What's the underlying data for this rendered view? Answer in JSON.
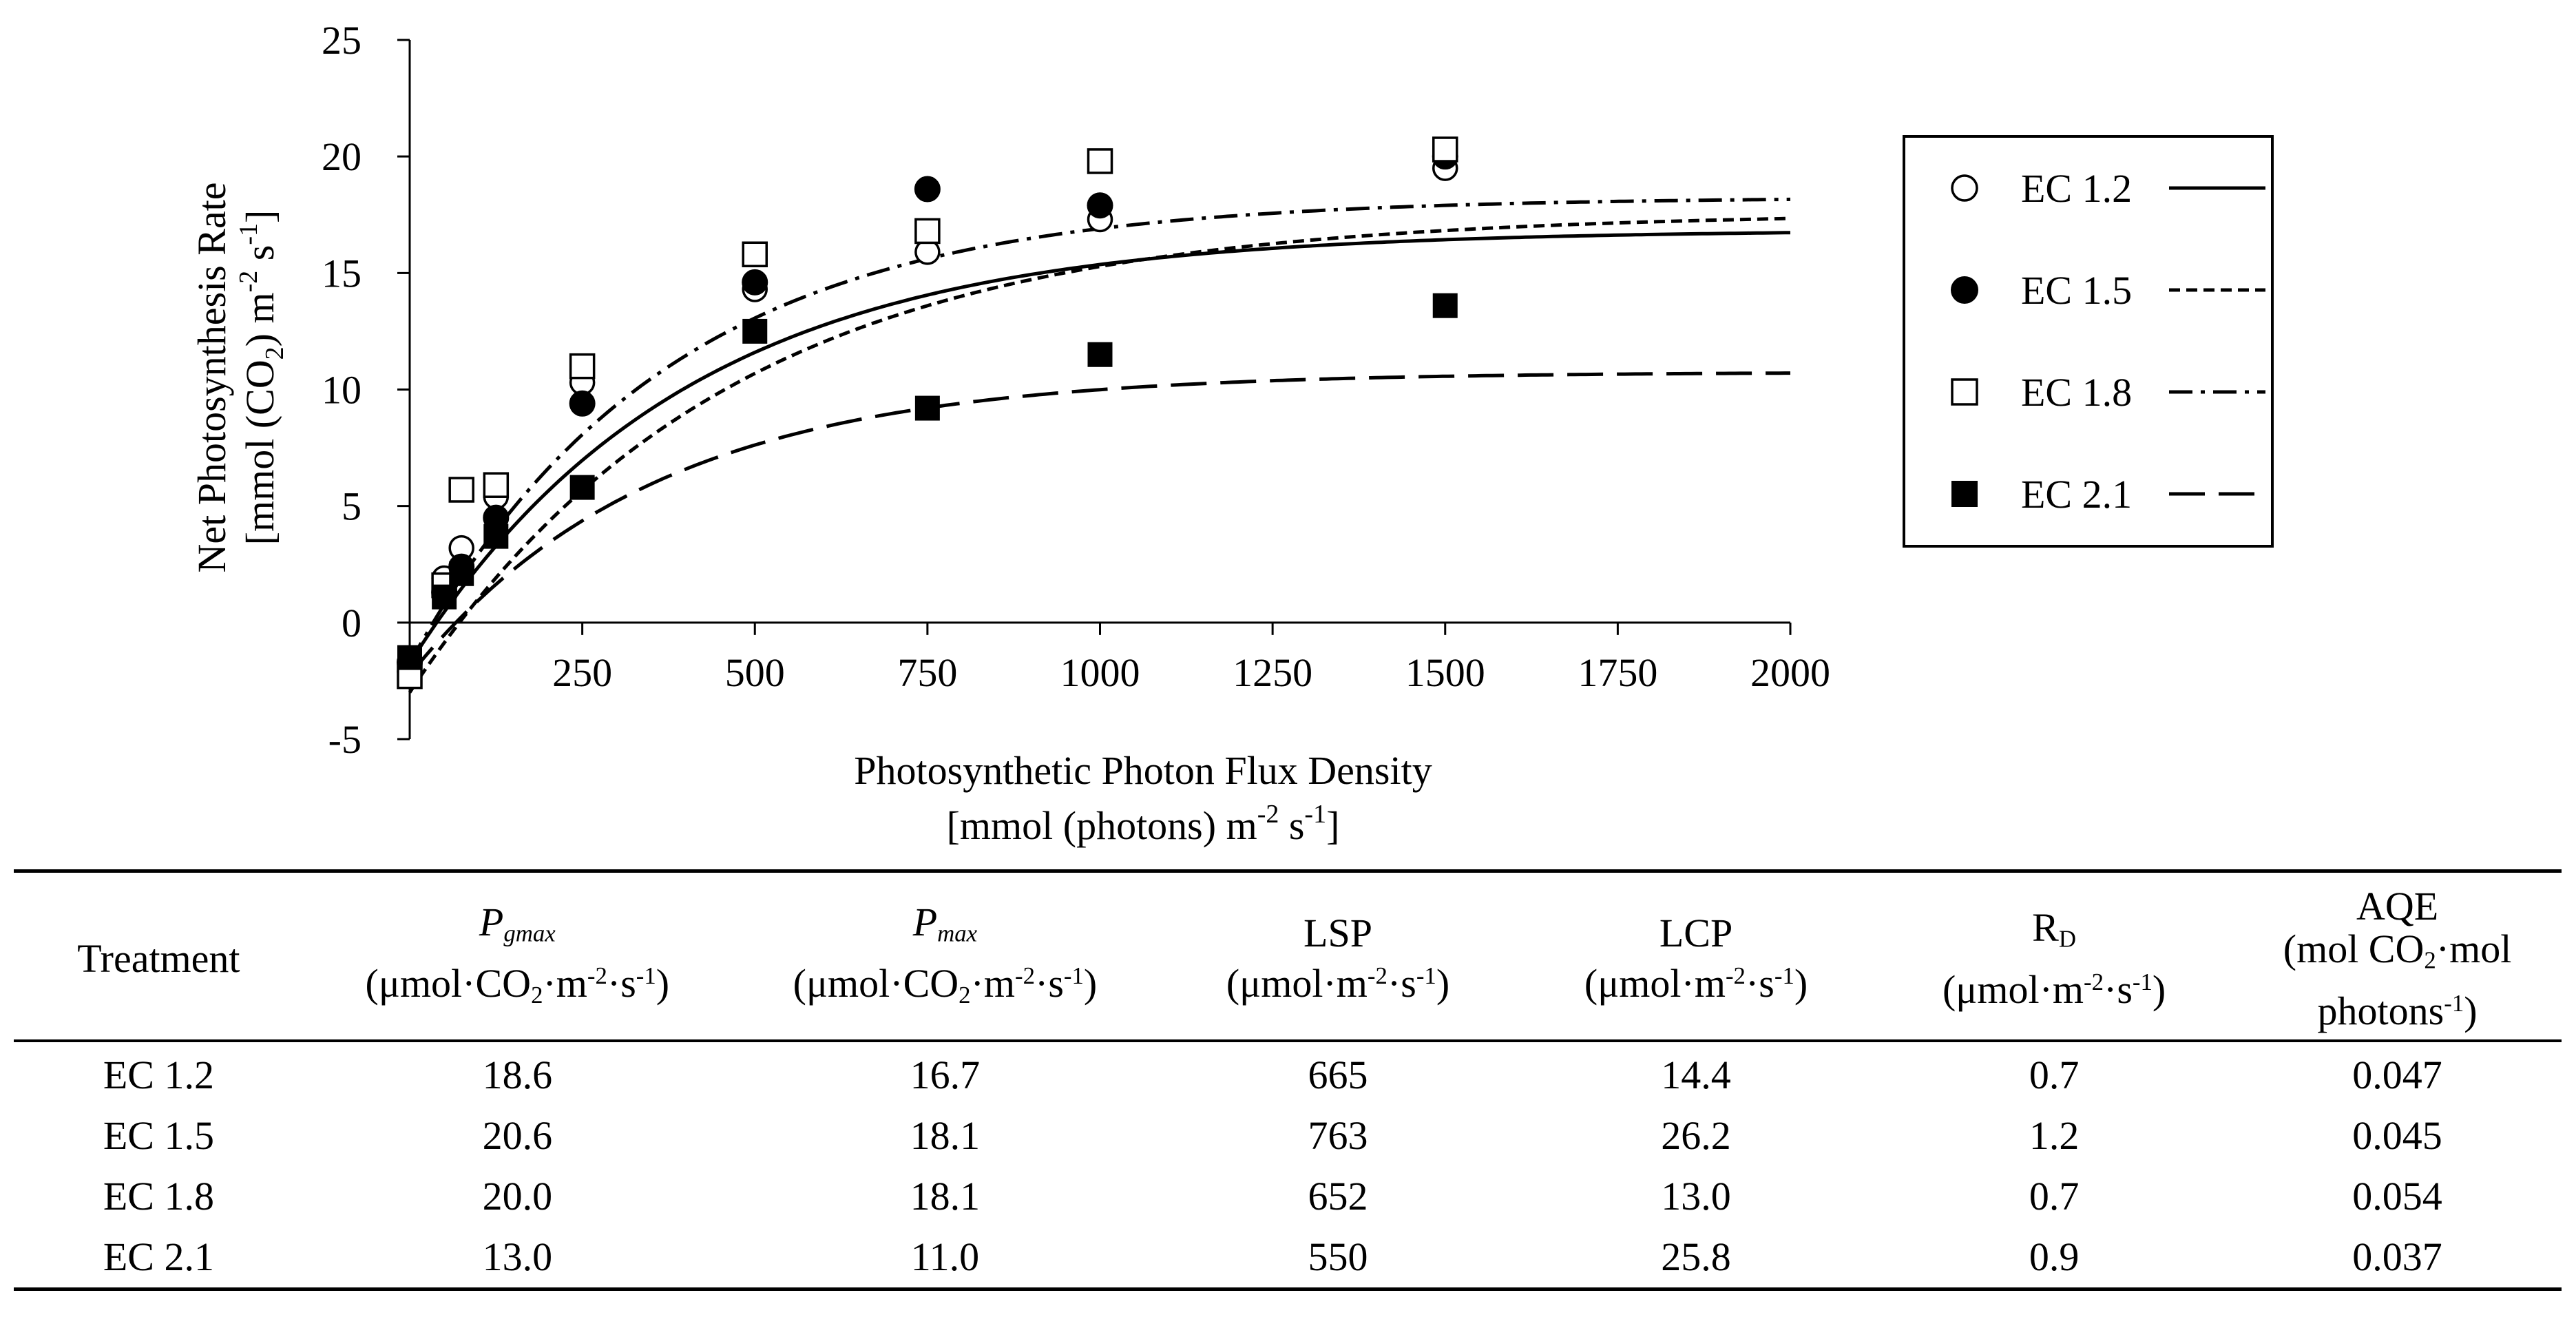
{
  "chart_data": {
    "type": "scatter",
    "title": "",
    "xlabel": "Photosynthetic Photon Flux Density",
    "xlabel_units": "[mmol (photons) m-2 s-1]",
    "ylabel": "Net Photosynthesis Rate",
    "ylabel_units": "[mmol (CO2) m-2 s-1]",
    "xlim": [
      0,
      2000
    ],
    "ylim": [
      -5,
      25
    ],
    "x_ticks": [
      250,
      500,
      750,
      1000,
      1250,
      1500,
      1750,
      2000
    ],
    "x_tick_labels": [
      "250",
      "500",
      "750",
      "1000",
      "1250",
      "1500",
      "1750",
      "2000"
    ],
    "y_ticks": [
      -5,
      0,
      5,
      10,
      15,
      20,
      25
    ],
    "y_tick_labels": [
      "-5",
      "0",
      "5",
      "10",
      "15",
      "20",
      "25"
    ],
    "grid": false,
    "legend_position": "right",
    "series": [
      {
        "name": "EC 1.2",
        "marker": "open-circle",
        "line": "solid",
        "points": [
          [
            0,
            -2.1
          ],
          [
            50,
            1.9
          ],
          [
            75,
            3.2
          ],
          [
            125,
            5.4
          ],
          [
            250,
            10.3
          ],
          [
            500,
            14.3
          ],
          [
            750,
            15.9
          ],
          [
            1000,
            17.3
          ],
          [
            1500,
            19.5
          ]
        ],
        "fit": {
          "pgmax": 18.6,
          "rd": 0.7,
          "aqe": 0.047
        }
      },
      {
        "name": "EC 1.5",
        "marker": "filled-circle",
        "line": "short-dash",
        "points": [
          [
            0,
            -1.7
          ],
          [
            50,
            1.3
          ],
          [
            75,
            2.4
          ],
          [
            125,
            4.5
          ],
          [
            250,
            9.4
          ],
          [
            500,
            14.6
          ],
          [
            750,
            18.6
          ],
          [
            1000,
            17.9
          ],
          [
            1500,
            20.0
          ]
        ],
        "fit": {
          "pgmax": 20.6,
          "rd": 1.2,
          "aqe": 0.045
        }
      },
      {
        "name": "EC 1.8",
        "marker": "open-square",
        "line": "dash-dot",
        "points": [
          [
            0,
            -2.3
          ],
          [
            50,
            1.6
          ],
          [
            75,
            5.7
          ],
          [
            125,
            5.9
          ],
          [
            250,
            11.0
          ],
          [
            500,
            15.8
          ],
          [
            750,
            16.8
          ],
          [
            1000,
            19.8
          ],
          [
            1500,
            20.3
          ]
        ],
        "fit": {
          "pgmax": 20.0,
          "rd": 0.7,
          "aqe": 0.054
        }
      },
      {
        "name": "EC 2.1",
        "marker": "filled-square",
        "line": "long-dash",
        "points": [
          [
            0,
            -1.5
          ],
          [
            50,
            1.1
          ],
          [
            75,
            2.1
          ],
          [
            125,
            3.7
          ],
          [
            250,
            5.8
          ],
          [
            500,
            12.5
          ],
          [
            750,
            9.2
          ],
          [
            1000,
            11.5
          ],
          [
            1500,
            13.6
          ]
        ],
        "fit": {
          "pgmax": 13.0,
          "rd": 0.9,
          "aqe": 0.037
        }
      }
    ]
  },
  "table": {
    "headers": [
      {
        "name": "Treatment",
        "unit": ""
      },
      {
        "name": "P",
        "name_sub": "gmax",
        "unit": "(μmol·CO2·m-2·s-1)"
      },
      {
        "name": "P",
        "name_sub": "max",
        "unit": "(μmol·CO2·m-2·s-1)"
      },
      {
        "name": "LSP",
        "unit": "(μmol·m-2·s-1)"
      },
      {
        "name": "LCP",
        "unit": "(μmol·m-2·s-1)"
      },
      {
        "name": "RD",
        "unit": "(μmol·m-2·s-1)"
      },
      {
        "name": "AQE",
        "unit": "(mol CO2·mol photons-1)"
      }
    ],
    "rows": [
      [
        "EC 1.2",
        "18.6",
        "16.7",
        "665",
        "14.4",
        "0.7",
        "0.047"
      ],
      [
        "EC 1.5",
        "20.6",
        "18.1",
        "763",
        "26.2",
        "1.2",
        "0.045"
      ],
      [
        "EC 1.8",
        "20.0",
        "18.1",
        "652",
        "13.0",
        "0.7",
        "0.054"
      ],
      [
        "EC 2.1",
        "13.0",
        "11.0",
        "550",
        "25.8",
        "0.9",
        "0.037"
      ]
    ]
  }
}
